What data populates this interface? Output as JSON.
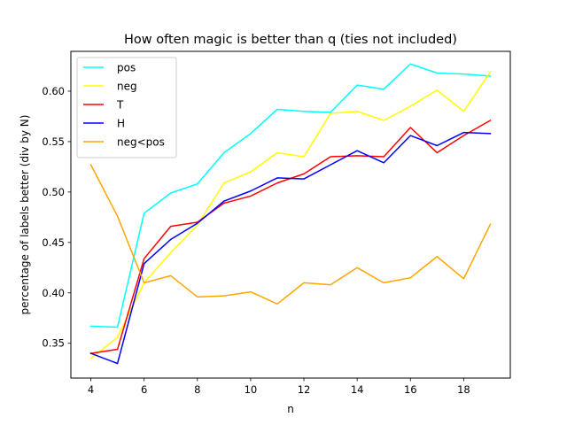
{
  "chart_data": {
    "type": "line",
    "title": "How often magic is better than q (ties not included)",
    "xlabel": "n",
    "ylabel": "percentage of labels better (div by N)",
    "x": [
      4,
      5,
      6,
      7,
      8,
      9,
      10,
      11,
      12,
      13,
      14,
      15,
      16,
      17,
      18,
      19
    ],
    "xlim": [
      3.25,
      19.75
    ],
    "ylim": [
      0.3155,
      0.6395
    ],
    "xticks": [
      4,
      6,
      8,
      10,
      12,
      14,
      16,
      18
    ],
    "yticks": [
      0.35,
      0.4,
      0.45,
      0.5,
      0.55,
      0.6
    ],
    "ytick_labels": [
      "0.35",
      "0.40",
      "0.45",
      "0.50",
      "0.55",
      "0.60"
    ],
    "grid": false,
    "legend_position": "top-left",
    "series": [
      {
        "name": "pos",
        "color": "#00ffff",
        "values": [
          0.367,
          0.366,
          0.479,
          0.499,
          0.508,
          0.539,
          0.558,
          0.582,
          0.58,
          0.579,
          0.606,
          0.602,
          0.627,
          0.618,
          0.617,
          0.615
        ]
      },
      {
        "name": "neg",
        "color": "#ffff00",
        "values": [
          0.335,
          0.356,
          0.41,
          0.44,
          0.467,
          0.509,
          0.52,
          0.539,
          0.535,
          0.578,
          0.58,
          0.571,
          0.585,
          0.601,
          0.58,
          0.619
        ]
      },
      {
        "name": "T",
        "color": "#ff0000",
        "values": [
          0.34,
          0.344,
          0.434,
          0.466,
          0.47,
          0.489,
          0.496,
          0.509,
          0.518,
          0.535,
          0.536,
          0.535,
          0.564,
          0.539,
          0.556,
          0.571
        ]
      },
      {
        "name": "H",
        "color": "#0000ff",
        "values": [
          0.34,
          0.33,
          0.429,
          0.453,
          0.469,
          0.491,
          0.501,
          0.514,
          0.513,
          0.527,
          0.541,
          0.529,
          0.556,
          0.546,
          0.559,
          0.558
        ]
      },
      {
        "name": "neg<pos",
        "color": "#ffa500",
        "values": [
          0.527,
          0.476,
          0.41,
          0.417,
          0.396,
          0.397,
          0.401,
          0.389,
          0.41,
          0.408,
          0.425,
          0.41,
          0.415,
          0.436,
          0.414,
          0.468
        ]
      }
    ]
  }
}
